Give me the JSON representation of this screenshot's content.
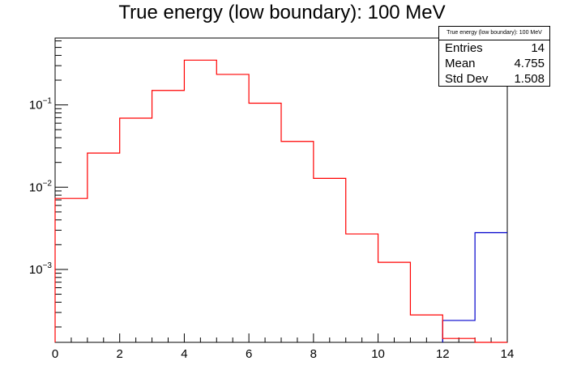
{
  "chart_data": {
    "type": "histogram",
    "title": "True energy (low boundary): 100 MeV",
    "xlim": [
      0,
      14
    ],
    "ylim": [
      0.00013,
      0.65
    ],
    "y_scale": "log",
    "x_ticks": [
      "0",
      "2",
      "4",
      "6",
      "8",
      "10",
      "12",
      "14"
    ],
    "y_ticks": [
      {
        "base": "10",
        "exp": "−1",
        "value": 0.1
      },
      {
        "base": "10",
        "exp": "−2",
        "value": 0.01
      },
      {
        "base": "10",
        "exp": "−3",
        "value": 0.001
      }
    ],
    "bin_edges": [
      0,
      1,
      2,
      3,
      4,
      5,
      6,
      7,
      8,
      9,
      10,
      11,
      12,
      13,
      14
    ],
    "series": [
      {
        "color": "#0000cc",
        "values": [
          null,
          null,
          null,
          null,
          null,
          null,
          null,
          null,
          null,
          null,
          null,
          null,
          0.00024,
          0.0028
        ]
      },
      {
        "color": "#ff0000",
        "values": [
          0.0073,
          0.026,
          0.069,
          0.15,
          0.35,
          0.235,
          0.105,
          0.036,
          0.0128,
          0.0027,
          0.00122,
          0.00028,
          0.000145,
          0.00012
        ]
      }
    ],
    "stats": {
      "title": "True energy (low boundary): 100 MeV",
      "rows": [
        {
          "label": "Entries",
          "value": "14"
        },
        {
          "label": "Mean",
          "value": "4.755"
        },
        {
          "label": "Std Dev",
          "value": "1.508"
        }
      ]
    }
  }
}
